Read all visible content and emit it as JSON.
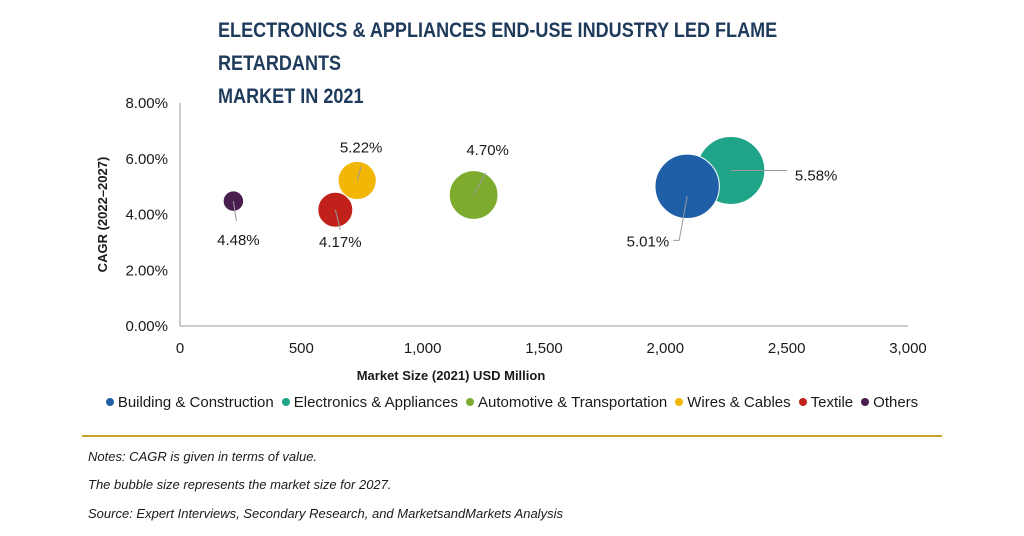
{
  "title_lines": [
    "ELECTRONICS & APPLIANCES END-USE INDUSTRY LED FLAME RETARDANTS",
    "MARKET IN 2021"
  ],
  "chart_data": {
    "type": "scatter",
    "bubble": true,
    "title": "ELECTRONICS & APPLIANCES END-USE INDUSTRY LED FLAME RETARDANTS MARKET IN 2021",
    "xlabel": "Market Size (2021) USD Million",
    "ylabel": "CAGR (2022–2027)",
    "xlim": [
      0,
      3000
    ],
    "ylim": [
      0,
      8
    ],
    "x_ticks": [
      "0",
      "500",
      "1,000",
      "1,500",
      "2,000",
      "2,500",
      "3,000"
    ],
    "x_tick_values": [
      0,
      500,
      1000,
      1500,
      2000,
      2500,
      3000
    ],
    "y_ticks": [
      "0.00%",
      "2.00%",
      "4.00%",
      "6.00%",
      "8.00%"
    ],
    "y_tick_values": [
      0,
      2,
      4,
      6,
      8
    ],
    "grid": false,
    "legend_position": "bottom",
    "series": [
      {
        "name": "Building & Construction",
        "x": 2090,
        "y": 5.01,
        "label": "5.01%",
        "size_2027": 2670,
        "color": "#1f5fa8"
      },
      {
        "name": "Electronics & Appliances",
        "x": 2270,
        "y": 5.58,
        "label": "5.58%",
        "size_2027": 2980,
        "color": "#20a487"
      },
      {
        "name": "Automotive & Transportation",
        "x": 1210,
        "y": 4.7,
        "label": "4.70%",
        "size_2027": 1530,
        "color": "#7cab2e"
      },
      {
        "name": "Wires & Cables",
        "x": 730,
        "y": 5.22,
        "label": "5.22%",
        "size_2027": 940,
        "color": "#f2b705"
      },
      {
        "name": "Textile",
        "x": 640,
        "y": 4.17,
        "label": "4.17%",
        "size_2027": 790,
        "color": "#c0221b"
      },
      {
        "name": "Others",
        "x": 220,
        "y": 4.48,
        "label": "4.48%",
        "size_2027": 270,
        "color": "#4a1e4e"
      }
    ]
  },
  "notes": [
    "Notes: CAGR is given in terms of value.",
    "The bubble size represents the market size for 2027.",
    "Source: Expert Interviews, Secondary Research, and MarketsandMarkets Analysis"
  ]
}
